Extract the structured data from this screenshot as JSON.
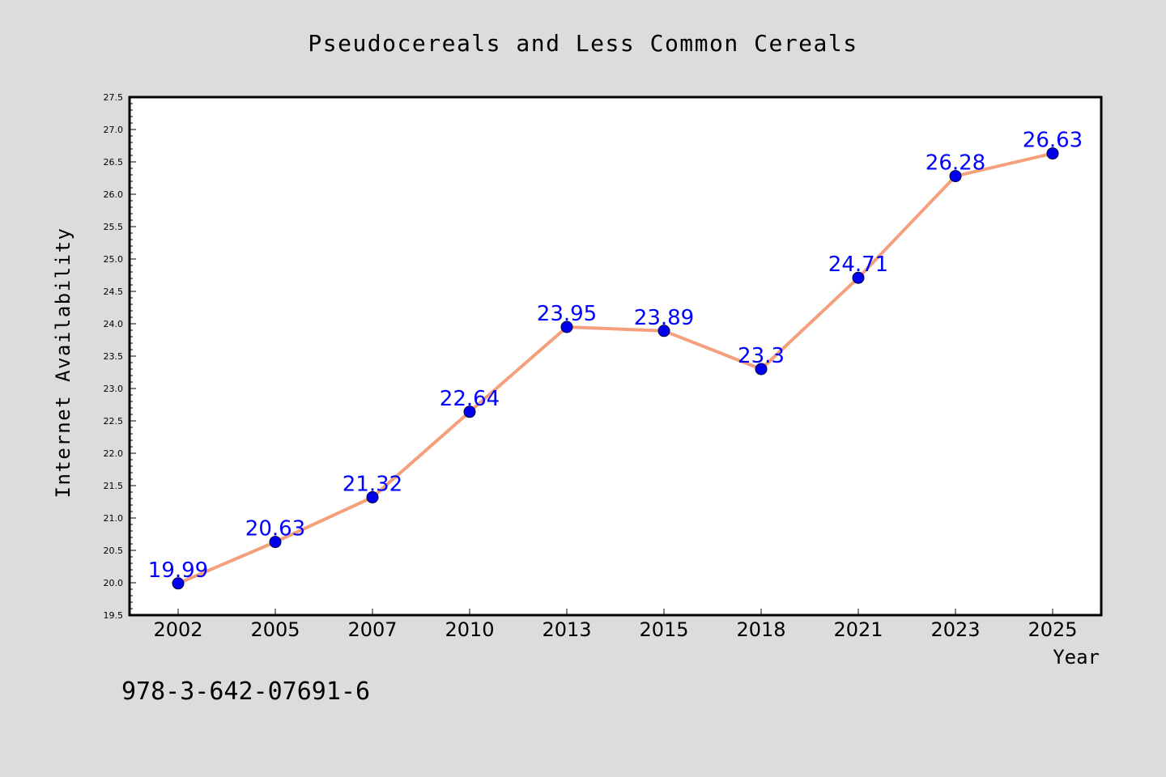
{
  "chart_data": {
    "type": "line",
    "title": "Pseudocereals and Less Common Cereals",
    "xlabel": "Year",
    "ylabel": "Internet Availability",
    "categories": [
      "2002",
      "2005",
      "2007",
      "2010",
      "2013",
      "2015",
      "2018",
      "2021",
      "2023",
      "2025"
    ],
    "series": [
      {
        "values": [
          19.99,
          20.63,
          21.32,
          22.64,
          23.95,
          23.89,
          23.3,
          24.71,
          26.28,
          26.63
        ],
        "data_labels": [
          "19.99",
          "20.63",
          "21.32",
          "22.64",
          "23.95",
          "23.89",
          "23.3",
          "24.71",
          "26.28",
          "26.63"
        ]
      }
    ],
    "ylim": [
      19.5,
      27.5
    ],
    "y_ticks": [
      "19.5",
      "20.0",
      "20.5",
      "21.0",
      "21.5",
      "22.0",
      "22.5",
      "23.0",
      "23.5",
      "24.0",
      "24.5",
      "25.0",
      "25.5",
      "26.0",
      "26.5",
      "27.0",
      "27.5"
    ],
    "grid": false,
    "line_color": "#f4a07c",
    "marker_color": "#0000ee",
    "label_color": "#0000ff"
  },
  "annotation": "978-3-642-07691-6"
}
